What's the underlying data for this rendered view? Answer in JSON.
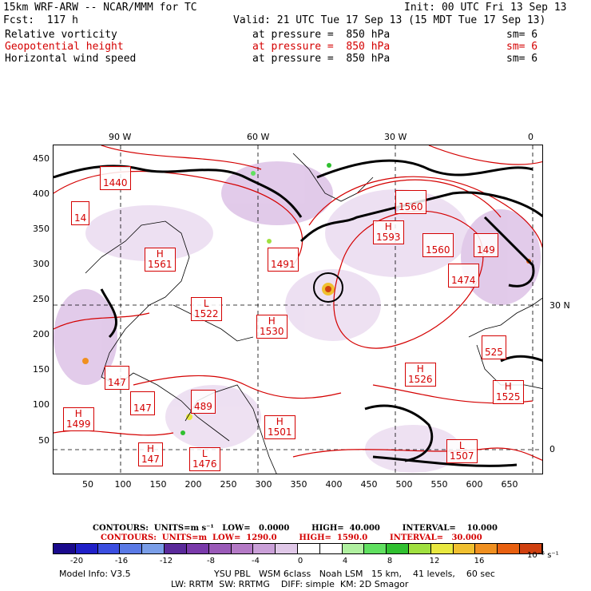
{
  "header": {
    "model": "15km WRF-ARW -- NCAR/MMM for TC",
    "init": "Init: 00 UTC Fri 13 Sep 13",
    "fcst": "Fcst:  117 h",
    "valid": "Valid: 21 UTC Tue 17 Sep 13 (15 MDT Tue 17 Sep 13)",
    "fields": [
      {
        "name": "Relative vorticity",
        "level": "at pressure =  850 hPa",
        "sm": "sm= 6",
        "color": "#000000"
      },
      {
        "name": "Geopotential height",
        "level": "at pressure =  850 hPa",
        "sm": "sm= 6",
        "color": "#d40000"
      },
      {
        "name": "Horizontal wind speed",
        "level": "at pressure =  850 hPa",
        "sm": "sm= 6",
        "color": "#000000"
      }
    ]
  },
  "map": {
    "lon_labels": [
      "90 W",
      "60 W",
      "30 W",
      "0"
    ],
    "lat_labels": [
      "30 N",
      "0"
    ],
    "y_ticks": [
      "450",
      "400",
      "350",
      "300",
      "250",
      "200",
      "150",
      "100",
      "50"
    ],
    "x_ticks": [
      "50",
      "100",
      "150",
      "200",
      "250",
      "300",
      "350",
      "400",
      "450",
      "500",
      "550",
      "600",
      "650"
    ],
    "highs_lows": [
      {
        "label": "",
        "value": "1440"
      },
      {
        "label": "",
        "value": "14"
      },
      {
        "label": "",
        "value": "1560"
      },
      {
        "label": "H",
        "value": "1593"
      },
      {
        "label": "",
        "value": "1560"
      },
      {
        "label": "",
        "value": "149"
      },
      {
        "label": "",
        "value": "1491"
      },
      {
        "label": "",
        "value": "1474"
      },
      {
        "label": "H",
        "value": "1561"
      },
      {
        "label": "L",
        "value": "1522"
      },
      {
        "label": "H",
        "value": "1530"
      },
      {
        "label": "",
        "value": "525"
      },
      {
        "label": "H",
        "value": "1526"
      },
      {
        "label": "H",
        "value": "1525"
      },
      {
        "label": "",
        "value": "147"
      },
      {
        "label": "",
        "value": "147"
      },
      {
        "label": "",
        "value": "489"
      },
      {
        "label": "H",
        "value": "1499"
      },
      {
        "label": "H",
        "value": "1501"
      },
      {
        "label": "H",
        "value": "147"
      },
      {
        "label": "L",
        "value": "1476"
      },
      {
        "label": "L",
        "value": "1507"
      }
    ]
  },
  "contours": {
    "line1": "CONTOURS:  UNITS=m s⁻¹   LOW=   0.0000        HIGH=  40.000        INTERVAL=    10.000",
    "line2": "CONTOURS:  UNITS=m  LOW=  1290.0        HIGH=  1590.0        INTERVAL=   30.000"
  },
  "colorbar": {
    "colors": [
      "#1a0a8c",
      "#2020c8",
      "#3b4ee0",
      "#5a7ae6",
      "#7a9ee8",
      "#5a2a9a",
      "#7a3aaa",
      "#9a5ab8",
      "#b47ac6",
      "#caa0d8",
      "#e0c8e8",
      "#ffffff",
      "#ffffff",
      "#b0f0a0",
      "#60e060",
      "#30c030",
      "#a0e040",
      "#e8e840",
      "#f0c030",
      "#f09020",
      "#e86010",
      "#d04010"
    ],
    "labels": [
      "-20",
      "-16",
      "-12",
      "-8",
      "-4",
      "0",
      "4",
      "8",
      "12",
      "16"
    ],
    "units": "10⁻⁵ s⁻¹"
  },
  "footer": {
    "model_info": "Model Info: V3.5",
    "line1": "YSU PBL   WSM 6class   Noah LSM   15 km,    41 levels,    60 sec",
    "line2": "LW: RRTM  SW: RRTMG    DIFF: simple  KM: 2D Smagor"
  }
}
